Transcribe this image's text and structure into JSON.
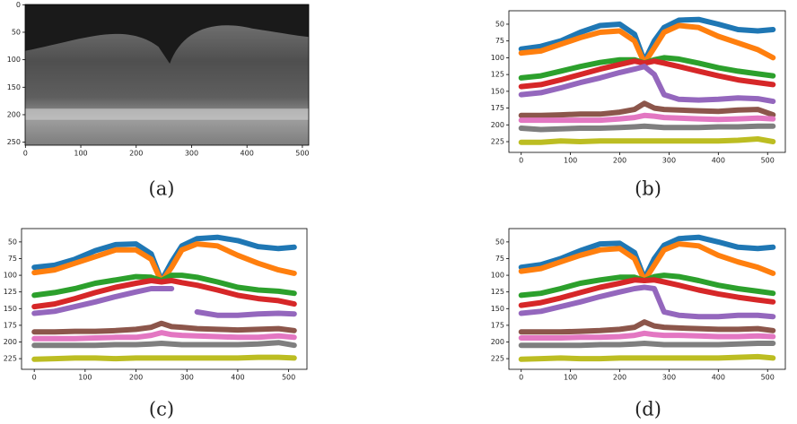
{
  "chart_data": [
    {
      "type": "image",
      "label": "(a)",
      "xlim": [
        -0.5,
        511.5
      ],
      "ylim": [
        255.5,
        -0.5
      ],
      "xticks": [
        0,
        100,
        200,
        300,
        400,
        500
      ],
      "yticks": [
        0,
        50,
        100,
        150,
        200,
        250
      ]
    },
    {
      "type": "line",
      "label": "(b)",
      "xlim": [
        -25,
        536
      ],
      "ylim": [
        241,
        30
      ],
      "xticks": [
        0,
        100,
        200,
        300,
        400,
        500
      ],
      "yticks": [
        50,
        75,
        100,
        125,
        150,
        175,
        200,
        225
      ],
      "x": [
        0,
        40,
        80,
        120,
        160,
        200,
        230,
        250,
        270,
        290,
        320,
        360,
        400,
        440,
        480,
        511
      ],
      "series": [
        {
          "color": "#1f77b4",
          "values": [
            87,
            83,
            75,
            62,
            52,
            50,
            65,
            105,
            75,
            55,
            44,
            43,
            50,
            58,
            60,
            58
          ]
        },
        {
          "color": "#ff7f0e",
          "values": [
            93,
            90,
            80,
            70,
            62,
            60,
            75,
            108,
            85,
            62,
            52,
            55,
            68,
            78,
            88,
            100
          ]
        },
        {
          "color": "#2ca02c",
          "values": [
            130,
            127,
            120,
            113,
            107,
            103,
            103,
            108,
            103,
            100,
            102,
            108,
            115,
            120,
            124,
            127
          ]
        },
        {
          "color": "#d62728",
          "values": [
            143,
            140,
            133,
            125,
            117,
            110,
            105,
            108,
            105,
            108,
            113,
            120,
            127,
            133,
            137,
            140
          ]
        },
        {
          "color": "#9467bd",
          "values": [
            155,
            152,
            145,
            137,
            130,
            122,
            117,
            113,
            125,
            155,
            162,
            163,
            162,
            160,
            161,
            165
          ]
        },
        {
          "color": "#8c564b",
          "values": [
            186,
            186,
            185,
            184,
            184,
            181,
            177,
            168,
            175,
            177,
            178,
            179,
            180,
            178,
            177,
            185
          ]
        },
        {
          "color": "#e377c2",
          "values": [
            193,
            193,
            193,
            193,
            193,
            191,
            189,
            186,
            187,
            189,
            190,
            191,
            192,
            191,
            190,
            191
          ]
        },
        {
          "color": "#7f7f7f",
          "values": [
            205,
            207,
            206,
            205,
            205,
            204,
            203,
            202,
            203,
            204,
            204,
            204,
            203,
            203,
            202,
            202
          ]
        },
        {
          "color": "#bcbd22",
          "values": [
            226,
            226,
            224,
            225,
            224,
            224,
            224,
            224,
            224,
            224,
            224,
            224,
            224,
            223,
            221,
            225
          ]
        }
      ]
    },
    {
      "type": "line",
      "label": "(c)",
      "xlim": [
        -25,
        536
      ],
      "ylim": [
        241,
        30
      ],
      "xticks": [
        0,
        100,
        200,
        300,
        400,
        500
      ],
      "yticks": [
        50,
        75,
        100,
        125,
        150,
        175,
        200,
        225
      ],
      "x": [
        0,
        40,
        80,
        120,
        160,
        200,
        230,
        250,
        270,
        290,
        320,
        360,
        400,
        440,
        480,
        511
      ],
      "series": [
        {
          "color": "#1f77b4",
          "values": [
            88,
            85,
            76,
            63,
            54,
            53,
            68,
            108,
            80,
            56,
            45,
            43,
            48,
            57,
            60,
            58
          ]
        },
        {
          "color": "#ff7f0e",
          "values": [
            96,
            92,
            82,
            72,
            62,
            62,
            76,
            110,
            88,
            62,
            53,
            56,
            70,
            82,
            92,
            97
          ]
        },
        {
          "color": "#2ca02c",
          "values": [
            130,
            126,
            120,
            112,
            107,
            102,
            103,
            108,
            100,
            100,
            103,
            110,
            118,
            122,
            124,
            127
          ]
        },
        {
          "color": "#d62728",
          "values": [
            147,
            143,
            135,
            126,
            118,
            112,
            108,
            110,
            108,
            111,
            115,
            122,
            130,
            135,
            138,
            143
          ]
        },
        {
          "color": "#9467bd",
          "values": [
            157,
            154,
            147,
            140,
            132,
            125,
            120,
            120,
            120,
            null,
            155,
            160,
            160,
            158,
            157,
            158
          ]
        },
        {
          "color": "#8c564b",
          "values": [
            185,
            185,
            184,
            184,
            183,
            181,
            178,
            172,
            177,
            178,
            180,
            181,
            182,
            181,
            180,
            183
          ]
        },
        {
          "color": "#e377c2",
          "values": [
            195,
            195,
            195,
            194,
            193,
            193,
            190,
            186,
            189,
            190,
            191,
            192,
            193,
            193,
            191,
            193
          ]
        },
        {
          "color": "#7f7f7f",
          "values": [
            205,
            205,
            205,
            205,
            204,
            204,
            203,
            202,
            203,
            204,
            204,
            204,
            204,
            203,
            201,
            205
          ]
        },
        {
          "color": "#bcbd22",
          "values": [
            226,
            225,
            224,
            224,
            225,
            224,
            224,
            224,
            224,
            224,
            224,
            224,
            224,
            223,
            223,
            224
          ]
        }
      ]
    },
    {
      "type": "line",
      "label": "(d)",
      "xlim": [
        -25,
        536
      ],
      "ylim": [
        241,
        30
      ],
      "xticks": [
        0,
        100,
        200,
        300,
        400,
        500
      ],
      "yticks": [
        50,
        75,
        100,
        125,
        150,
        175,
        200,
        225
      ],
      "x": [
        0,
        40,
        80,
        120,
        160,
        200,
        230,
        250,
        270,
        290,
        320,
        360,
        400,
        440,
        480,
        511
      ],
      "series": [
        {
          "color": "#1f77b4",
          "values": [
            88,
            84,
            75,
            63,
            53,
            52,
            66,
            105,
            75,
            55,
            45,
            43,
            50,
            58,
            60,
            58
          ]
        },
        {
          "color": "#ff7f0e",
          "values": [
            94,
            90,
            80,
            70,
            62,
            60,
            75,
            108,
            85,
            62,
            53,
            56,
            70,
            80,
            88,
            97
          ]
        },
        {
          "color": "#2ca02c",
          "values": [
            130,
            127,
            120,
            112,
            107,
            103,
            103,
            108,
            102,
            100,
            102,
            108,
            115,
            120,
            124,
            127
          ]
        },
        {
          "color": "#d62728",
          "values": [
            145,
            141,
            134,
            126,
            118,
            112,
            107,
            108,
            107,
            110,
            115,
            122,
            128,
            133,
            137,
            140
          ]
        },
        {
          "color": "#9467bd",
          "values": [
            157,
            154,
            147,
            140,
            132,
            125,
            120,
            118,
            120,
            155,
            160,
            162,
            162,
            160,
            160,
            162
          ]
        },
        {
          "color": "#8c564b",
          "values": [
            185,
            185,
            185,
            184,
            183,
            181,
            178,
            170,
            176,
            178,
            179,
            180,
            181,
            181,
            180,
            183
          ]
        },
        {
          "color": "#e377c2",
          "values": [
            194,
            194,
            194,
            193,
            193,
            192,
            190,
            187,
            189,
            190,
            190,
            191,
            192,
            192,
            191,
            192
          ]
        },
        {
          "color": "#7f7f7f",
          "values": [
            205,
            205,
            205,
            205,
            204,
            204,
            203,
            202,
            203,
            204,
            204,
            204,
            204,
            203,
            202,
            202
          ]
        },
        {
          "color": "#bcbd22",
          "values": [
            226,
            225,
            224,
            225,
            225,
            224,
            224,
            224,
            224,
            224,
            224,
            224,
            224,
            223,
            222,
            224
          ]
        }
      ]
    }
  ]
}
